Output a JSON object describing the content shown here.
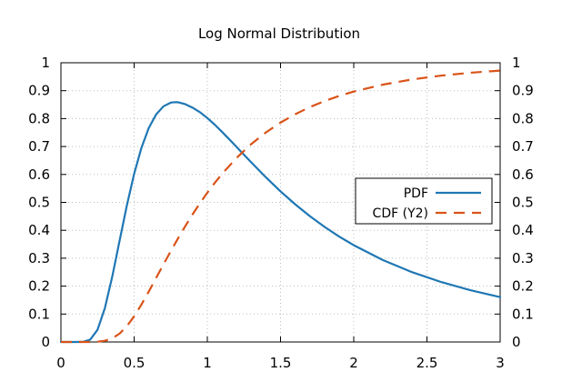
{
  "chart_data": {
    "type": "line",
    "title": "Log Normal Distribution",
    "xlabel": "",
    "ylabel": "",
    "y2label": "",
    "xlim": [
      0,
      3
    ],
    "ylim": [
      0,
      1
    ],
    "y2lim": [
      0,
      1
    ],
    "grid": true,
    "legend_position": "right",
    "x_ticks": [
      "0",
      "0.5",
      "1",
      "1.5",
      "2",
      "2.5",
      "3"
    ],
    "y_ticks": [
      "0",
      "0.1",
      "0.2",
      "0.3",
      "0.4",
      "0.5",
      "0.6",
      "0.7",
      "0.8",
      "0.9",
      "1"
    ],
    "y2_ticks": [
      "0",
      "0.1",
      "0.2",
      "0.3",
      "0.4",
      "0.5",
      "0.6",
      "0.7",
      "0.8",
      "0.9",
      "1"
    ],
    "series": [
      {
        "name": "PDF",
        "axis": "y1",
        "style": "solid",
        "color": "#1f77b4",
        "x": [
          0,
          0.05,
          0.1,
          0.15,
          0.2,
          0.25,
          0.3,
          0.35,
          0.4,
          0.45,
          0.5,
          0.55,
          0.6,
          0.65,
          0.7,
          0.75,
          0.78,
          0.8,
          0.85,
          0.9,
          0.95,
          1.0,
          1.05,
          1.1,
          1.15,
          1.2,
          1.25,
          1.3,
          1.4,
          1.5,
          1.6,
          1.7,
          1.8,
          1.9,
          2.0,
          2.2,
          2.4,
          2.6,
          2.8,
          3.0
        ],
        "y": [
          0,
          0.0,
          0.0,
          0.0004,
          0.0084,
          0.0437,
          0.1208,
          0.2327,
          0.3609,
          0.4882,
          0.6021,
          0.6956,
          0.7662,
          0.8147,
          0.8438,
          0.8572,
          0.859,
          0.8586,
          0.8515,
          0.8388,
          0.8227,
          0.8021,
          0.7785,
          0.7527,
          0.7258,
          0.6984,
          0.6707,
          0.6432,
          0.5897,
          0.5394,
          0.4931,
          0.4508,
          0.4124,
          0.3778,
          0.3466,
          0.2932,
          0.2497,
          0.2142,
          0.1849,
          0.1606
        ]
      },
      {
        "name": "CDF (Y2)",
        "axis": "y2",
        "style": "dashed",
        "color": "#d95319",
        "x": [
          0,
          0.05,
          0.1,
          0.15,
          0.2,
          0.25,
          0.3,
          0.35,
          0.4,
          0.45,
          0.5,
          0.55,
          0.6,
          0.65,
          0.7,
          0.75,
          0.8,
          0.85,
          0.9,
          0.95,
          1.0,
          1.05,
          1.1,
          1.2,
          1.3,
          1.4,
          1.5,
          1.6,
          1.7,
          1.8,
          1.9,
          2.0,
          2.2,
          2.4,
          2.6,
          2.8,
          3.0
        ],
        "y": [
          0,
          0.0,
          0.0,
          0.0,
          0.0001,
          0.0009,
          0.0042,
          0.0127,
          0.0297,
          0.0565,
          0.0919,
          0.1342,
          0.1807,
          0.2292,
          0.2776,
          0.3251,
          0.3711,
          0.4154,
          0.4576,
          0.4973,
          0.5346,
          0.5693,
          0.6017,
          0.6595,
          0.7088,
          0.7505,
          0.7858,
          0.8157,
          0.8412,
          0.8627,
          0.8811,
          0.8969,
          0.9218,
          0.9403,
          0.9541,
          0.9643,
          0.972
        ]
      }
    ]
  }
}
